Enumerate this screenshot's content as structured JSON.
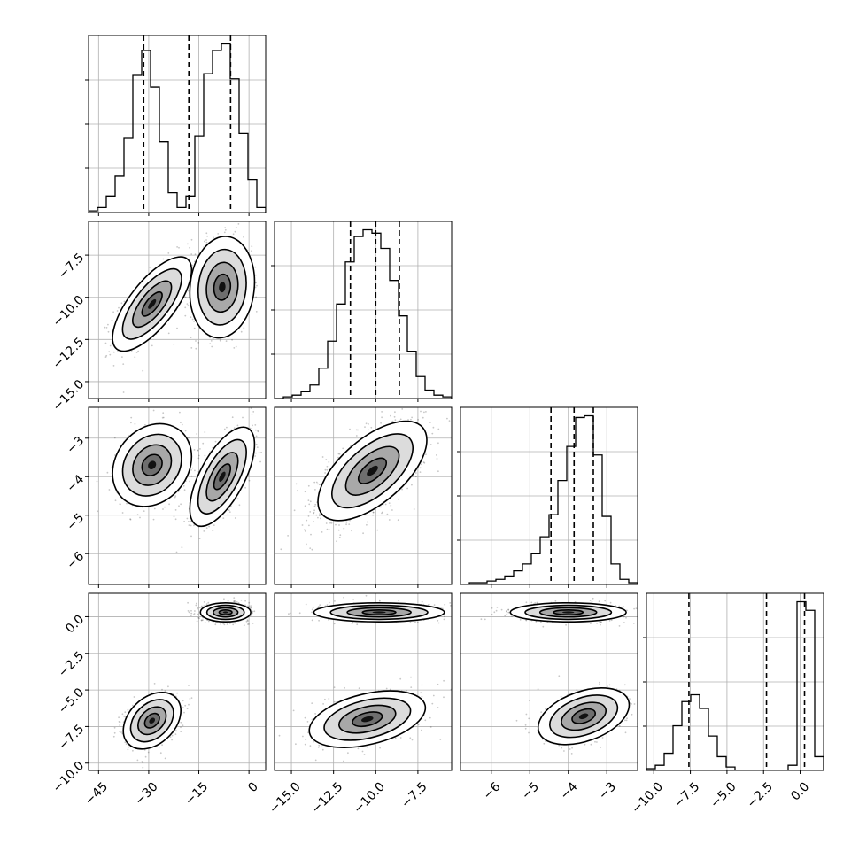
{
  "chart_data": {
    "type": "corner",
    "n_params": 4,
    "grid": true,
    "params": [
      {
        "range": [
          -48,
          5
        ],
        "ticks": [
          -45,
          -30,
          -15,
          0
        ],
        "tick_labels": [
          "−45",
          "−30",
          "−15",
          "0"
        ],
        "quantiles": [
          -31.5,
          -18,
          -5.5
        ],
        "hist": {
          "edges": [
            -48,
            -45.35,
            -42.7,
            -40.05,
            -37.4,
            -34.75,
            -32.1,
            -29.45,
            -26.8,
            -24.15,
            -21.5,
            -18.85,
            -16.2,
            -13.55,
            -10.9,
            -8.25,
            -5.6,
            -2.95,
            -0.3,
            2.35,
            5
          ],
          "counts": [
            1,
            3,
            10,
            22,
            45,
            83,
            98,
            76,
            43,
            12,
            3,
            10,
            46,
            84,
            98,
            102,
            81,
            48,
            20,
            3
          ]
        },
        "modes": [
          {
            "cx": -29,
            "cy": -10.4,
            "sx": 5.5,
            "sy": 1.3,
            "rho": 0.72,
            "weight": 0.5
          },
          {
            "cx": -8,
            "cy": -9.4,
            "sx": 4.5,
            "sy": 1.4,
            "rho": 0.1,
            "weight": 0.5
          }
        ]
      },
      {
        "range": [
          -16,
          -5.5
        ],
        "ticks": [
          -15,
          -12.5,
          -10,
          -7.5
        ],
        "tick_labels": [
          "−15.0",
          "−12.5",
          "−10.0",
          "−7.5"
        ],
        "quantiles": [
          -11.5,
          -10,
          -8.6
        ],
        "hist": {
          "edges": [
            -16,
            -15.475,
            -14.95,
            -14.425,
            -13.9,
            -13.375,
            -12.85,
            -12.325,
            -11.8,
            -11.275,
            -10.75,
            -10.225,
            -9.7,
            -9.175,
            -8.65,
            -8.125,
            -7.6,
            -7.075,
            -6.55,
            -6.025,
            -5.5
          ],
          "counts": [
            0,
            1,
            2,
            4,
            8,
            18,
            34,
            56,
            81,
            96,
            100,
            98,
            89,
            70,
            49,
            28,
            13,
            5,
            2,
            1
          ]
        },
        "modes": []
      },
      {
        "range": [
          -6.8,
          -2.2
        ],
        "ticks": [
          -6,
          -5,
          -4,
          -3
        ],
        "tick_labels": [
          "−6",
          "−5",
          "−4",
          "−3"
        ],
        "quantiles": [
          -4.45,
          -3.85,
          -3.35
        ],
        "hist": {
          "edges": [
            -6.8,
            -6.57,
            -6.34,
            -6.11,
            -5.88,
            -5.65,
            -5.42,
            -5.19,
            -4.96,
            -4.73,
            -4.5,
            -4.27,
            -4.04,
            -3.81,
            -3.58,
            -3.35,
            -3.12,
            -2.89,
            -2.66,
            -2.43,
            -2.2
          ],
          "counts": [
            0,
            1,
            1,
            2,
            3,
            5,
            8,
            12,
            18,
            28,
            41,
            61,
            81,
            98,
            99,
            76,
            40,
            12,
            3,
            1
          ]
        },
        "modes": []
      },
      {
        "range": [
          -10.5,
          1.6
        ],
        "ticks": [
          -10,
          -7.5,
          -5,
          -2.5,
          0
        ],
        "tick_labels": [
          "−10.0",
          "−7.5",
          "−5.0",
          "−2.5",
          "0.0"
        ],
        "quantiles": [
          -7.6,
          -2.3,
          0.3
        ],
        "hist": {
          "edges": [
            -10.5,
            -9.895,
            -9.29,
            -8.685,
            -8.08,
            -7.475,
            -6.87,
            -6.265,
            -5.66,
            -5.055,
            -4.45,
            -3.845,
            -3.24,
            -2.635,
            -2.03,
            -1.425,
            -0.82,
            -0.215,
            0.39,
            0.995,
            1.6
          ],
          "counts": [
            1,
            3,
            10,
            26,
            40,
            44,
            36,
            20,
            8,
            2,
            0,
            0,
            0,
            0,
            0,
            0,
            3,
            98,
            93,
            8
          ]
        },
        "modes": []
      }
    ],
    "pairs": [
      {
        "row": 1,
        "col": 0,
        "modes": [
          {
            "cx": -29,
            "cy": -10.4,
            "sx": 5.5,
            "sy": 1.3,
            "rho": 0.72,
            "weight": 0.5
          },
          {
            "cx": -8,
            "cy": -9.4,
            "sx": 4.5,
            "sy": 1.4,
            "rho": 0.1,
            "weight": 0.5
          }
        ]
      },
      {
        "row": 2,
        "col": 0,
        "modes": [
          {
            "cx": -29,
            "cy": -3.7,
            "sx": 5.5,
            "sy": 0.5,
            "rho": 0.2,
            "weight": 0.5
          },
          {
            "cx": -8,
            "cy": -4.0,
            "sx": 4.5,
            "sy": 0.6,
            "rho": 0.65,
            "weight": 0.5
          }
        ]
      },
      {
        "row": 2,
        "col": 1,
        "modes": [
          {
            "cx": -10.2,
            "cy": -3.85,
            "sx": 1.5,
            "sy": 0.6,
            "rho": 0.62,
            "weight": 1
          }
        ]
      },
      {
        "row": 3,
        "col": 0,
        "modes": [
          {
            "cx": -7,
            "cy": 0.3,
            "sx": 3.5,
            "sy": 0.3,
            "rho": 0,
            "weight": 0.55
          },
          {
            "cx": -29,
            "cy": -7.1,
            "sx": 4.0,
            "sy": 0.9,
            "rho": 0.35,
            "weight": 0.45
          }
        ]
      },
      {
        "row": 3,
        "col": 1,
        "modes": [
          {
            "cx": -9.8,
            "cy": 0.3,
            "sx": 1.8,
            "sy": 0.3,
            "rho": 0,
            "weight": 0.55
          },
          {
            "cx": -10.5,
            "cy": -7.0,
            "sx": 1.6,
            "sy": 0.9,
            "rho": 0.4,
            "weight": 0.45
          }
        ]
      },
      {
        "row": 3,
        "col": 2,
        "modes": [
          {
            "cx": -4.0,
            "cy": 0.3,
            "sx": 0.7,
            "sy": 0.3,
            "rho": 0,
            "weight": 0.55
          },
          {
            "cx": -3.6,
            "cy": -6.8,
            "sx": 0.55,
            "sy": 0.9,
            "rho": 0.4,
            "weight": 0.45
          }
        ]
      }
    ]
  }
}
